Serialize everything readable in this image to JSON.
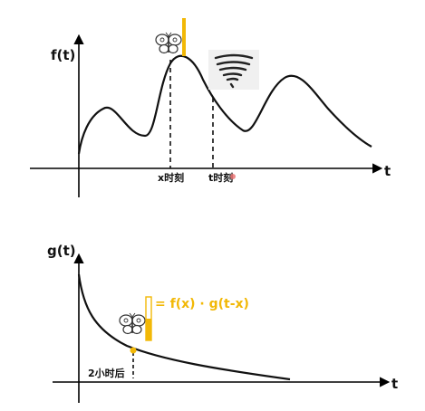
{
  "top_graph": {
    "y_label": "f(t)",
    "x_label": "t",
    "marker_x_label": "x时刻",
    "marker_t_label": "t时刻",
    "butterfly_icon": "butterfly-icon",
    "tornado_icon": "tornado-icon"
  },
  "bottom_graph": {
    "y_label": "g(t)",
    "x_label": "t",
    "marker_label": "2小时后",
    "formula": "= f(x) · g(t-x)",
    "butterfly_icon": "butterfly-icon"
  },
  "colors": {
    "axis": "#000000",
    "curve": "#111111",
    "accent": "#f2b807",
    "tornado_bg": "#f0f0f0"
  }
}
